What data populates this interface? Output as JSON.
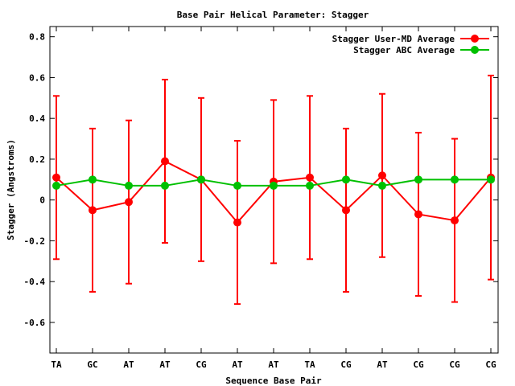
{
  "chart_data": {
    "type": "line",
    "title": "Base Pair Helical Parameter: Stagger",
    "xlabel": "Sequence Base Pair",
    "ylabel": "Stagger (Angstroms)",
    "categories": [
      "TA",
      "GC",
      "AT",
      "AT",
      "CG",
      "AT",
      "AT",
      "TA",
      "CG",
      "AT",
      "CG",
      "CG",
      "CG"
    ],
    "ylim": [
      -0.75,
      0.85
    ],
    "yticks": [
      -0.6,
      -0.4,
      -0.2,
      0,
      0.2,
      0.4,
      0.6,
      0.8
    ],
    "ytick_labels": [
      "-0.6",
      "-0.4",
      "-0.2",
      "0",
      "0.2",
      "0.4",
      "0.6",
      "0.8"
    ],
    "legend_position": "top-right",
    "grid": false,
    "series": [
      {
        "name": "Stagger User-MD Average",
        "color": "#ff0000",
        "values": [
          0.11,
          -0.05,
          -0.01,
          0.19,
          0.1,
          -0.11,
          0.09,
          0.11,
          -0.05,
          0.12,
          -0.07,
          -0.1,
          0.11
        ],
        "error": [
          0.4,
          0.4,
          0.4,
          0.4,
          0.4,
          0.4,
          0.4,
          0.4,
          0.4,
          0.4,
          0.4,
          0.4,
          0.5
        ]
      },
      {
        "name": "Stagger ABC Average",
        "color": "#00c000",
        "values": [
          0.07,
          0.1,
          0.07,
          0.07,
          0.1,
          0.07,
          0.07,
          0.07,
          0.1,
          0.07,
          0.1,
          0.1,
          0.1
        ]
      }
    ]
  }
}
